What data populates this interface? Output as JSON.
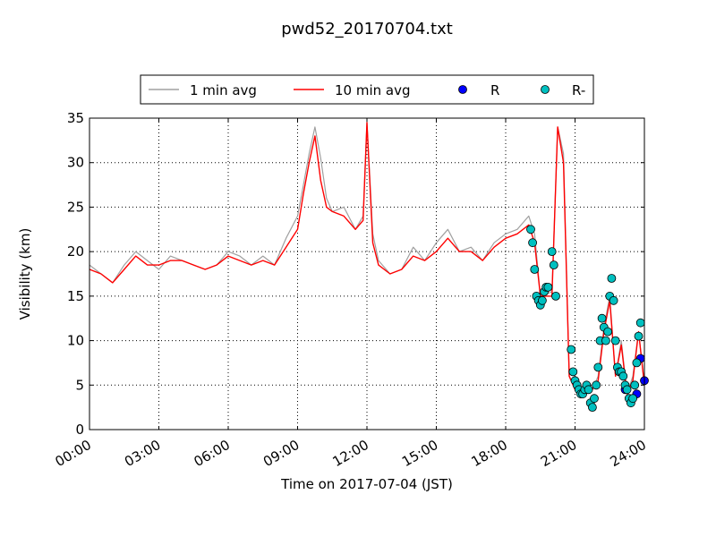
{
  "chart_data": {
    "type": "line",
    "title": "pwd52_20170704.txt",
    "xlabel": "Time on 2017-07-04 (JST)",
    "ylabel": "Visibility (km)",
    "xlim": [
      "00:00",
      "24:00"
    ],
    "ylim": [
      0,
      35
    ],
    "x_ticks": [
      "00:00",
      "03:00",
      "06:00",
      "09:00",
      "12:00",
      "15:00",
      "18:00",
      "21:00",
      "24:00"
    ],
    "y_ticks": [
      "0",
      "5",
      "10",
      "15",
      "20",
      "25",
      "30",
      "35"
    ],
    "grid": true,
    "legend_position": "top",
    "series": [
      {
        "name": "1 min avg",
        "style": "line",
        "color": "#a0a0a0",
        "x": [
          "00:00",
          "00:30",
          "01:00",
          "01:30",
          "02:00",
          "02:30",
          "03:00",
          "03:30",
          "04:00",
          "04:30",
          "05:00",
          "05:30",
          "06:00",
          "06:30",
          "07:00",
          "07:30",
          "08:00",
          "08:30",
          "09:00",
          "09:15",
          "09:30",
          "09:45",
          "10:00",
          "10:15",
          "10:30",
          "11:00",
          "11:30",
          "11:50",
          "12:00",
          "12:15",
          "12:30",
          "13:00",
          "13:30",
          "14:00",
          "14:30",
          "15:00",
          "15:30",
          "16:00",
          "16:30",
          "17:00",
          "17:30",
          "18:00",
          "18:30",
          "19:00",
          "19:15",
          "19:30",
          "20:00",
          "20:15",
          "20:30",
          "20:45",
          "21:00",
          "21:15",
          "21:30",
          "21:45",
          "22:00",
          "22:15",
          "22:30",
          "22:45",
          "23:00",
          "23:15",
          "23:30",
          "23:45",
          "24:00"
        ],
        "y": [
          18.5,
          17.5,
          16.5,
          18.5,
          20.0,
          19.0,
          18.0,
          19.5,
          19.0,
          18.5,
          18.0,
          18.5,
          20.0,
          19.5,
          18.5,
          19.5,
          18.5,
          21.5,
          24.0,
          27.5,
          31.0,
          34.0,
          30.5,
          26.0,
          24.5,
          25.0,
          22.5,
          24.0,
          34.5,
          22.0,
          19.0,
          17.5,
          18.0,
          20.5,
          19.0,
          21.0,
          22.5,
          20.0,
          20.5,
          19.0,
          21.0,
          22.0,
          22.5,
          24.0,
          22.0,
          15.0,
          15.5,
          34.0,
          31.0,
          6.0,
          4.5,
          4.0,
          5.0,
          4.5,
          6.0,
          11.5,
          15.0,
          6.0,
          10.0,
          4.0,
          6.0,
          11.0,
          5.0
        ]
      },
      {
        "name": "10 min avg",
        "style": "line",
        "color": "#ff0000",
        "x": [
          "00:00",
          "00:30",
          "01:00",
          "01:30",
          "02:00",
          "02:30",
          "03:00",
          "03:30",
          "04:00",
          "04:30",
          "05:00",
          "05:30",
          "06:00",
          "06:30",
          "07:00",
          "07:30",
          "08:00",
          "08:30",
          "09:00",
          "09:15",
          "09:30",
          "09:45",
          "10:00",
          "10:15",
          "10:30",
          "11:00",
          "11:30",
          "11:50",
          "12:00",
          "12:15",
          "12:30",
          "13:00",
          "13:30",
          "14:00",
          "14:30",
          "15:00",
          "15:30",
          "16:00",
          "16:30",
          "17:00",
          "17:30",
          "18:00",
          "18:30",
          "19:00",
          "19:15",
          "19:30",
          "20:00",
          "20:15",
          "20:30",
          "20:45",
          "21:00",
          "21:15",
          "21:30",
          "21:45",
          "22:00",
          "22:15",
          "22:30",
          "22:45",
          "23:00",
          "23:15",
          "23:30",
          "23:45",
          "24:00"
        ],
        "y": [
          18.0,
          17.5,
          16.5,
          18.0,
          19.5,
          18.5,
          18.5,
          19.0,
          19.0,
          18.5,
          18.0,
          18.5,
          19.5,
          19.0,
          18.5,
          19.0,
          18.5,
          20.5,
          22.5,
          26.5,
          30.0,
          33.0,
          28.0,
          25.0,
          24.5,
          24.0,
          22.5,
          23.5,
          34.5,
          21.0,
          18.5,
          17.5,
          18.0,
          19.5,
          19.0,
          20.0,
          21.5,
          20.0,
          20.0,
          19.0,
          20.5,
          21.5,
          22.0,
          23.0,
          21.0,
          15.0,
          15.0,
          34.0,
          30.0,
          6.0,
          4.5,
          4.0,
          5.0,
          4.5,
          5.5,
          11.0,
          14.5,
          6.0,
          9.5,
          4.0,
          5.5,
          11.0,
          5.0
        ]
      },
      {
        "name": "R",
        "style": "marker",
        "color": "#0000ff",
        "x": [
          "23:10",
          "23:40",
          "23:50",
          "24:00"
        ],
        "y": [
          4.5,
          4.0,
          8.0,
          5.5
        ]
      },
      {
        "name": "R-",
        "style": "marker",
        "color": "#00c0c0",
        "x": [
          "19:05",
          "19:10",
          "19:15",
          "19:20",
          "19:25",
          "19:30",
          "19:35",
          "19:40",
          "19:45",
          "19:50",
          "20:00",
          "20:05",
          "20:10",
          "20:50",
          "20:55",
          "21:00",
          "21:05",
          "21:10",
          "21:15",
          "21:20",
          "21:25",
          "21:30",
          "21:35",
          "21:40",
          "21:45",
          "21:50",
          "21:55",
          "22:00",
          "22:05",
          "22:10",
          "22:15",
          "22:20",
          "22:25",
          "22:30",
          "22:35",
          "22:40",
          "22:45",
          "22:50",
          "22:55",
          "23:00",
          "23:05",
          "23:10",
          "23:15",
          "23:20",
          "23:25",
          "23:30",
          "23:35",
          "23:40",
          "23:45",
          "23:50"
        ],
        "y": [
          22.5,
          21.0,
          18.0,
          15.0,
          14.5,
          14.0,
          14.5,
          15.5,
          16.0,
          16.0,
          20.0,
          18.5,
          15.0,
          9.0,
          6.5,
          5.5,
          5.0,
          4.5,
          4.0,
          4.0,
          4.5,
          5.0,
          4.5,
          3.0,
          2.5,
          3.5,
          5.0,
          7.0,
          10.0,
          12.5,
          11.5,
          10.0,
          11.0,
          15.0,
          17.0,
          14.5,
          10.0,
          7.0,
          6.5,
          6.5,
          6.0,
          5.0,
          4.5,
          3.5,
          3.0,
          3.5,
          5.0,
          7.5,
          10.5,
          12.0
        ]
      }
    ]
  }
}
